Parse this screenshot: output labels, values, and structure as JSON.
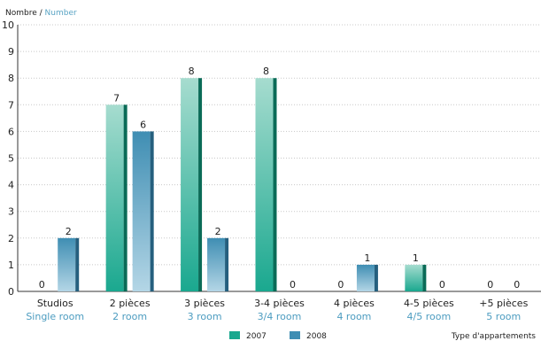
{
  "chart_data": {
    "type": "bar",
    "ylabel_fr": "Nombre",
    "ylabel_sep": " / ",
    "ylabel_en": "Number",
    "xlabel": "Type d'appartements",
    "ylim": [
      0,
      10
    ],
    "yticks": [
      "0",
      "1",
      "2",
      "3",
      "4",
      "5",
      "6",
      "7",
      "8",
      "9",
      "10"
    ],
    "categories": [
      {
        "fr": "Studios",
        "en": "Single room"
      },
      {
        "fr": "2 pièces",
        "en": "2 room"
      },
      {
        "fr": "3 pièces",
        "en": "3 room"
      },
      {
        "fr": "3-4 pièces",
        "en": "3/4 room"
      },
      {
        "fr": "4 pièces",
        "en": "4 room"
      },
      {
        "fr": "4-5 pièces",
        "en": "4/5 room"
      },
      {
        "fr": "+5 pièces",
        "en": "5 room"
      }
    ],
    "series": [
      {
        "name": "2007",
        "values": [
          0,
          7,
          8,
          8,
          0,
          1,
          0
        ],
        "labels": [
          "0",
          "7",
          "8",
          "8",
          "0",
          "1",
          "0"
        ],
        "color": "#1aa88f",
        "light": "#a6dccf",
        "edge": "#0a6b57"
      },
      {
        "name": "2008",
        "values": [
          2,
          6,
          2,
          0,
          1,
          0,
          0
        ],
        "labels": [
          "2",
          "6",
          "2",
          "0",
          "1",
          "0",
          "0"
        ],
        "color": "#3f8eb3",
        "light": "#b4d6e6",
        "edge": "#255f7e"
      }
    ],
    "grid": true,
    "legend": "bottom"
  }
}
